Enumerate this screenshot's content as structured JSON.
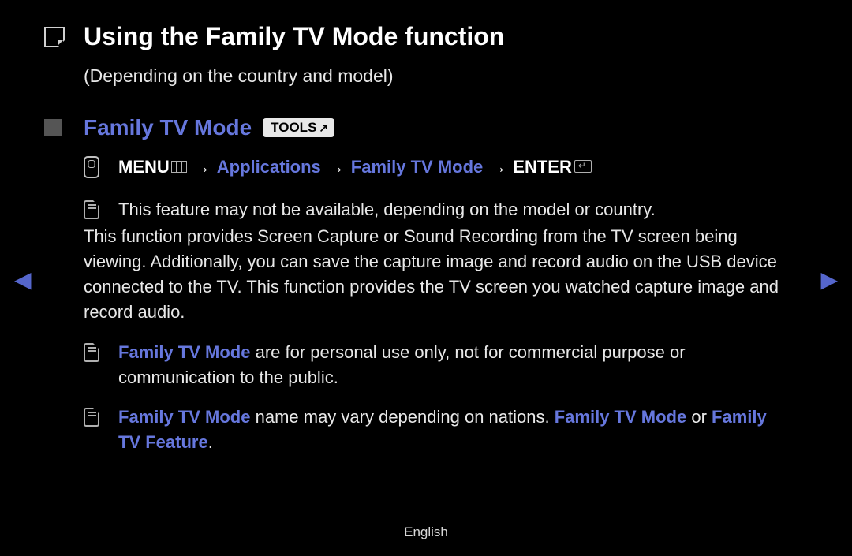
{
  "colors": {
    "background": "#000000",
    "text": "#e8e8e8",
    "heading": "#ffffff",
    "accent": "#6677dd",
    "bullet": "#555555",
    "icon_border": "#b0b0b0",
    "badge_bg": "#e8e8e8",
    "badge_text": "#000000"
  },
  "typography": {
    "title_fontsize": 32,
    "section_fontsize": 28,
    "body_fontsize": 22,
    "footer_fontsize": 17
  },
  "title": "Using the Family TV Mode function",
  "subtitle": "(Depending on the country and model)",
  "section": {
    "heading": "Family TV Mode",
    "tools_label": "TOOLS"
  },
  "nav_path": {
    "menu": "MENU",
    "arrow": "→",
    "step1": "Applications",
    "step2": "Family TV Mode",
    "enter": "ENTER"
  },
  "note1": "This feature may not be available, depending on the model or country.",
  "description": "This function provides Screen Capture or Sound Recording from the TV screen being viewing. Additionally, you can save the capture image and record audio on the USB device connected to the TV. This function provides the TV screen you watched capture image and record audio.",
  "note2": {
    "highlight1": "Family TV Mode",
    "rest": " are for personal use only, not for commercial purpose or communication to the public."
  },
  "note3": {
    "highlight1": "Family TV Mode",
    "mid1": " name may vary depending on nations. ",
    "highlight2": "Family TV Mode",
    "mid2": " or ",
    "highlight3": "Family TV Feature",
    "end": "."
  },
  "nav": {
    "left": "◀",
    "right": "▶"
  },
  "footer": {
    "language": "English"
  }
}
